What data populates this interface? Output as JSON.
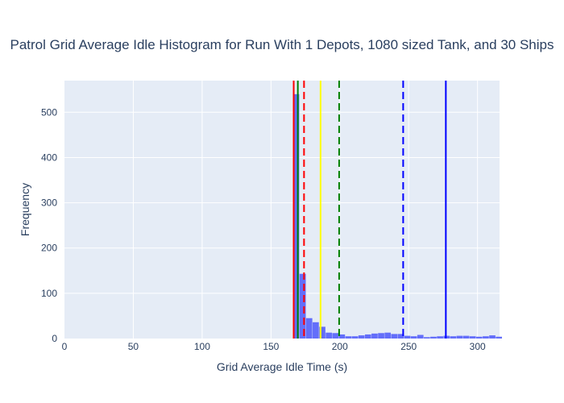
{
  "chart_data": {
    "type": "bar",
    "title": "Patrol Grid Average Idle Histogram for Run With 1 Depots, 1080 sized Tank, and 30 Ships",
    "xlabel": "Grid Average Idle Time (s)",
    "ylabel": "Frequency",
    "xlim": [
      0,
      316
    ],
    "ylim": [
      0,
      570
    ],
    "x_ticks": [
      0,
      50,
      100,
      150,
      200,
      250,
      300
    ],
    "y_ticks": [
      0,
      100,
      200,
      300,
      400,
      500
    ],
    "grid": true,
    "bin_width": 4.75,
    "bin_starts": [
      166,
      170.75,
      175.5,
      180.25,
      185,
      189.75,
      194.5,
      199.25,
      204,
      208.75,
      213.5,
      218.25,
      223,
      227.75,
      232.5,
      237.25,
      242,
      246.75,
      251.5,
      256.25,
      261,
      265.75,
      270.5,
      275.25,
      280,
      284.75,
      289.5,
      294.25,
      299,
      303.75,
      308.5,
      313.25
    ],
    "values": [
      540,
      143,
      45,
      36,
      26,
      13,
      12,
      9,
      5,
      5,
      7,
      9,
      11,
      12,
      13,
      10,
      10,
      6,
      5,
      8,
      3,
      4,
      5,
      6,
      5,
      6,
      6,
      5,
      4,
      5,
      7,
      4
    ],
    "bar_color": "#636efa",
    "vlines": [
      {
        "x": 166.5,
        "color": "#ff0000",
        "dash": "solid"
      },
      {
        "x": 169.5,
        "color": "#008000",
        "dash": "solid"
      },
      {
        "x": 174,
        "color": "#ff0000",
        "dash": "dash"
      },
      {
        "x": 186,
        "color": "#ffff00",
        "dash": "solid"
      },
      {
        "x": 199.5,
        "color": "#008000",
        "dash": "dash"
      },
      {
        "x": 246,
        "color": "#0000ff",
        "dash": "dash"
      },
      {
        "x": 277,
        "color": "#0000ff",
        "dash": "solid"
      }
    ]
  }
}
